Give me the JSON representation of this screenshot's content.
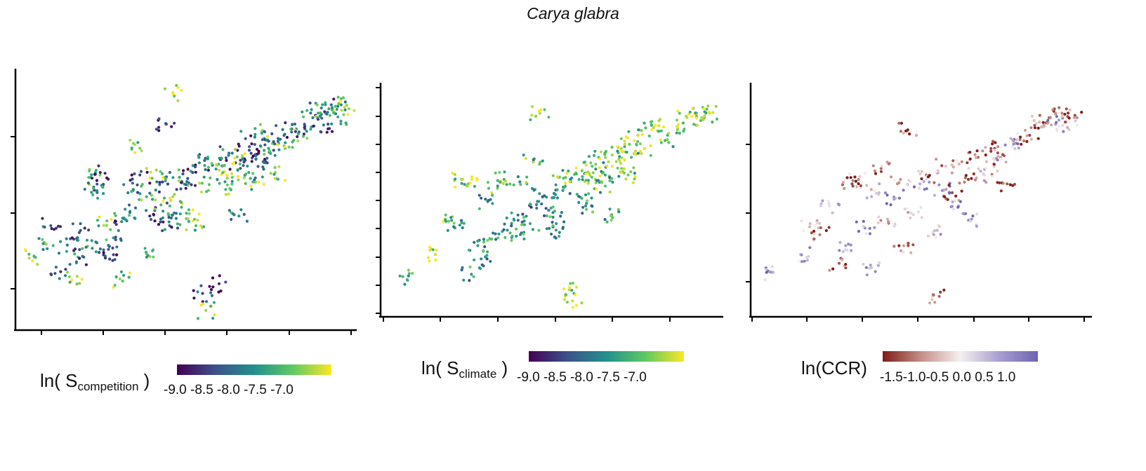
{
  "title": "Carya glabra",
  "panels": [
    {
      "legend": {
        "prefix": "ln( S",
        "sub": "competition",
        "suffix": " )"
      },
      "colorbar_ticks": "-9.0 -8.5 -8.0 -7.5 -7.0",
      "colormap": "viridis",
      "color_range": [
        -9.2,
        -6.7
      ]
    },
    {
      "legend": {
        "prefix": "ln( S",
        "sub": "climate",
        "suffix": " )"
      },
      "colorbar_ticks": "-9.0 -8.5 -8.0 -7.5 -7.0",
      "colormap": "viridis",
      "color_range": [
        -9.2,
        -6.7
      ]
    },
    {
      "legend": {
        "prefix": "ln(CCR)",
        "sub": "",
        "suffix": ""
      },
      "colorbar_ticks": "-1.5-1.0-0.5 0.0 0.5 1.0",
      "colormap": "diverging-brown-white-purple",
      "color_range": [
        -1.9,
        1.2
      ]
    }
  ],
  "colors": {
    "viridis": [
      "#440154",
      "#3b528b",
      "#21918c",
      "#5ec962",
      "#fde725"
    ],
    "diverging": [
      "#7f1d16",
      "#c58f88",
      "#f5f0f0",
      "#a89fd0",
      "#6e63b3"
    ]
  },
  "chart_data": [
    {
      "type": "scatter",
      "title": "Carya glabra",
      "colorbar_label": "ln( Scompetition )",
      "color_ticks": [
        -9.0,
        -8.5,
        -8.0,
        -7.5,
        -7.0
      ],
      "xlim": [
        0,
        1
      ],
      "ylim": [
        0,
        1
      ],
      "grid": false,
      "points": [
        [
          0.04,
          0.27,
          -7.0
        ],
        [
          0.09,
          0.4,
          -8.5
        ],
        [
          0.07,
          0.33,
          -7.5
        ],
        [
          0.12,
          0.21,
          -8.8
        ],
        [
          0.14,
          0.32,
          -8.2
        ],
        [
          0.17,
          0.19,
          -7.0
        ],
        [
          0.18,
          0.38,
          -8.6
        ],
        [
          0.21,
          0.6,
          -7.7
        ],
        [
          0.22,
          0.56,
          -8.1
        ],
        [
          0.24,
          0.62,
          -8.9
        ],
        [
          0.26,
          0.42,
          -7.3
        ],
        [
          0.25,
          0.3,
          -8.4
        ],
        [
          0.28,
          0.35,
          -7.9
        ],
        [
          0.28,
          0.28,
          -8.7
        ],
        [
          0.3,
          0.18,
          -7.1
        ],
        [
          0.31,
          0.43,
          -8.5
        ],
        [
          0.33,
          0.46,
          -7.8
        ],
        [
          0.34,
          0.55,
          -8.0
        ],
        [
          0.36,
          0.72,
          -7.2
        ],
        [
          0.36,
          0.61,
          -8.7
        ],
        [
          0.38,
          0.52,
          -7.6
        ],
        [
          0.39,
          0.44,
          -8.9
        ],
        [
          0.4,
          0.3,
          -7.4
        ],
        [
          0.42,
          0.57,
          -8.3
        ],
        [
          0.43,
          0.46,
          -7.9
        ],
        [
          0.44,
          0.82,
          -8.8
        ],
        [
          0.46,
          0.52,
          -7.0
        ],
        [
          0.46,
          0.95,
          -6.8
        ],
        [
          0.47,
          0.43,
          -8.1
        ],
        [
          0.48,
          0.6,
          -7.7
        ],
        [
          0.5,
          0.57,
          -8.4
        ],
        [
          0.51,
          0.45,
          -7.2
        ],
        [
          0.52,
          0.62,
          -8.6
        ],
        [
          0.53,
          0.4,
          -7.5
        ],
        [
          0.54,
          0.66,
          -8.0
        ],
        [
          0.55,
          0.12,
          -8.7
        ],
        [
          0.56,
          0.05,
          -7.1
        ],
        [
          0.57,
          0.57,
          -7.4
        ],
        [
          0.58,
          0.65,
          -8.3
        ],
        [
          0.6,
          0.63,
          -6.9
        ],
        [
          0.6,
          0.16,
          -8.9
        ],
        [
          0.62,
          0.55,
          -7.6
        ],
        [
          0.63,
          0.7,
          -8.2
        ],
        [
          0.64,
          0.6,
          -7.3
        ],
        [
          0.65,
          0.66,
          -8.8
        ],
        [
          0.66,
          0.44,
          -7.9
        ],
        [
          0.67,
          0.69,
          -7.0
        ],
        [
          0.68,
          0.76,
          -8.5
        ],
        [
          0.69,
          0.62,
          -7.7
        ],
        [
          0.7,
          0.68,
          -8.4
        ],
        [
          0.71,
          0.58,
          -7.2
        ],
        [
          0.72,
          0.7,
          -8.9
        ],
        [
          0.73,
          0.79,
          -7.5
        ],
        [
          0.74,
          0.66,
          -8.1
        ],
        [
          0.75,
          0.72,
          -7.8
        ],
        [
          0.76,
          0.78,
          -8.6
        ],
        [
          0.77,
          0.62,
          -7.1
        ],
        [
          0.78,
          0.74,
          -8.0
        ],
        [
          0.8,
          0.72,
          -7.4
        ],
        [
          0.82,
          0.8,
          -8.7
        ],
        [
          0.84,
          0.78,
          -7.6
        ],
        [
          0.86,
          0.8,
          -8.3
        ],
        [
          0.88,
          0.88,
          -7.9
        ],
        [
          0.9,
          0.84,
          -8.8
        ],
        [
          0.92,
          0.87,
          -7.2
        ],
        [
          0.94,
          0.9,
          -8.4
        ],
        [
          0.96,
          0.85,
          -7.7
        ],
        [
          0.97,
          0.9,
          -8.0
        ],
        [
          0.98,
          0.89,
          -6.9
        ],
        [
          0.93,
          0.82,
          -8.6
        ],
        [
          0.23,
          0.54,
          -8.0
        ],
        [
          0.2,
          0.34,
          -7.8
        ],
        [
          0.19,
          0.27,
          -8.3
        ],
        [
          0.45,
          0.4,
          -8.5
        ],
        [
          0.41,
          0.63,
          -7.1
        ]
      ]
    },
    {
      "type": "scatter",
      "colorbar_label": "ln( Sclimate )",
      "color_ticks": [
        -9.0,
        -8.5,
        -8.0,
        -7.5,
        -7.0
      ],
      "xlim": [
        0,
        1
      ],
      "ylim": [
        0,
        1
      ],
      "grid": false,
      "points": [
        [
          0.04,
          0.16,
          -7.5
        ],
        [
          0.14,
          0.26,
          -6.9
        ],
        [
          0.17,
          0.42,
          -7.4
        ],
        [
          0.2,
          0.38,
          -7.7
        ],
        [
          0.22,
          0.6,
          -7.1
        ],
        [
          0.25,
          0.17,
          -7.9
        ],
        [
          0.28,
          0.24,
          -8.0
        ],
        [
          0.31,
          0.33,
          -7.8
        ],
        [
          0.33,
          0.56,
          -7.3
        ],
        [
          0.35,
          0.6,
          -7.6
        ],
        [
          0.38,
          0.42,
          -8.0
        ],
        [
          0.4,
          0.35,
          -7.9
        ],
        [
          0.42,
          0.58,
          -7.7
        ],
        [
          0.44,
          0.68,
          -7.5
        ],
        [
          0.46,
          0.9,
          -7.0
        ],
        [
          0.48,
          0.52,
          -7.9
        ],
        [
          0.5,
          0.45,
          -8.1
        ],
        [
          0.51,
          0.4,
          -7.8
        ],
        [
          0.52,
          0.61,
          -7.4
        ],
        [
          0.53,
          0.55,
          -7.9
        ],
        [
          0.55,
          0.1,
          -7.0
        ],
        [
          0.56,
          0.05,
          -6.9
        ],
        [
          0.57,
          0.63,
          -7.2
        ],
        [
          0.58,
          0.6,
          -7.6
        ],
        [
          0.6,
          0.53,
          -7.9
        ],
        [
          0.62,
          0.66,
          -7.3
        ],
        [
          0.63,
          0.6,
          -7.1
        ],
        [
          0.64,
          0.7,
          -7.5
        ],
        [
          0.66,
          0.62,
          -7.8
        ],
        [
          0.67,
          0.68,
          -7.0
        ],
        [
          0.68,
          0.44,
          -7.6
        ],
        [
          0.7,
          0.72,
          -7.4
        ],
        [
          0.71,
          0.65,
          -7.2
        ],
        [
          0.72,
          0.76,
          -6.9
        ],
        [
          0.74,
          0.7,
          -7.5
        ],
        [
          0.76,
          0.8,
          -7.2
        ],
        [
          0.78,
          0.74,
          -7.1
        ],
        [
          0.8,
          0.86,
          -7.4
        ],
        [
          0.82,
          0.82,
          -7.0
        ],
        [
          0.85,
          0.78,
          -7.3
        ],
        [
          0.88,
          0.84,
          -7.1
        ],
        [
          0.91,
          0.88,
          -6.9
        ],
        [
          0.94,
          0.9,
          -7.2
        ],
        [
          0.96,
          0.87,
          -7.0
        ],
        [
          0.98,
          0.9,
          -6.8
        ],
        [
          0.24,
          0.58,
          -7.2
        ],
        [
          0.3,
          0.5,
          -8.0
        ],
        [
          0.36,
          0.37,
          -7.9
        ],
        [
          0.45,
          0.47,
          -8.2
        ],
        [
          0.6,
          0.48,
          -7.9
        ],
        [
          0.27,
          0.3,
          -7.8
        ],
        [
          0.52,
          0.36,
          -8.1
        ],
        [
          0.43,
          0.4,
          -7.7
        ],
        [
          0.66,
          0.57,
          -7.4
        ],
        [
          0.73,
          0.62,
          -7.3
        ]
      ]
    },
    {
      "type": "scatter",
      "colorbar_label": "ln(CCR)",
      "color_ticks": [
        -1.5,
        -1.0,
        -0.5,
        0.0,
        0.5,
        1.0
      ],
      "xlim": [
        0,
        1
      ],
      "ylim": [
        0,
        1
      ],
      "grid": false,
      "points": [
        [
          0.04,
          0.18,
          0.6
        ],
        [
          0.13,
          0.26,
          0.0
        ],
        [
          0.16,
          0.4,
          -0.8
        ],
        [
          0.19,
          0.35,
          -1.3
        ],
        [
          0.22,
          0.48,
          -0.2
        ],
        [
          0.25,
          0.22,
          -1.5
        ],
        [
          0.27,
          0.3,
          0.5
        ],
        [
          0.29,
          0.58,
          -1.6
        ],
        [
          0.31,
          0.6,
          -1.2
        ],
        [
          0.33,
          0.38,
          0.7
        ],
        [
          0.36,
          0.55,
          -0.4
        ],
        [
          0.38,
          0.65,
          -1.4
        ],
        [
          0.4,
          0.42,
          -0.9
        ],
        [
          0.42,
          0.52,
          0.8
        ],
        [
          0.44,
          0.6,
          -1.1
        ],
        [
          0.46,
          0.82,
          -1.5
        ],
        [
          0.48,
          0.44,
          -0.6
        ],
        [
          0.5,
          0.58,
          0.3
        ],
        [
          0.52,
          0.62,
          -1.3
        ],
        [
          0.54,
          0.36,
          -0.2
        ],
        [
          0.56,
          0.07,
          -1.4
        ],
        [
          0.57,
          0.55,
          0.9
        ],
        [
          0.58,
          0.66,
          -0.7
        ],
        [
          0.6,
          0.54,
          -1.6
        ],
        [
          0.62,
          0.48,
          0.4
        ],
        [
          0.63,
          0.68,
          -1.2
        ],
        [
          0.65,
          0.6,
          -1.7
        ],
        [
          0.66,
          0.42,
          0.6
        ],
        [
          0.68,
          0.7,
          -1.4
        ],
        [
          0.7,
          0.62,
          -0.5
        ],
        [
          0.72,
          0.74,
          -1.6
        ],
        [
          0.73,
          0.66,
          0.2
        ],
        [
          0.75,
          0.7,
          -1.1
        ],
        [
          0.77,
          0.58,
          -1.5
        ],
        [
          0.79,
          0.76,
          0.7
        ],
        [
          0.81,
          0.78,
          -1.3
        ],
        [
          0.84,
          0.8,
          -1.6
        ],
        [
          0.87,
          0.86,
          -0.8
        ],
        [
          0.9,
          0.88,
          -1.5
        ],
        [
          0.92,
          0.85,
          0.5
        ],
        [
          0.94,
          0.9,
          -1.2
        ],
        [
          0.96,
          0.86,
          -0.3
        ],
        [
          0.98,
          0.89,
          -1.6
        ],
        [
          0.35,
          0.2,
          0.1
        ],
        [
          0.45,
          0.3,
          -1.0
        ]
      ]
    }
  ]
}
